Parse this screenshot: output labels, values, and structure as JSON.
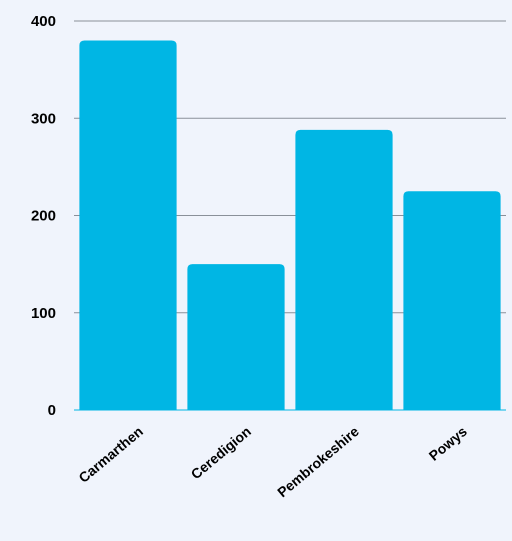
{
  "chart_data": {
    "type": "bar",
    "title": "",
    "xlabel": "",
    "ylabel": "",
    "categories": [
      "Carmarthen",
      "Ceredigion",
      "Pembrokeshire",
      "Powys"
    ],
    "values": [
      380,
      150,
      288,
      225
    ],
    "ylim": [
      0,
      400
    ],
    "yticks": [
      "0",
      "100",
      "200",
      "300",
      "400"
    ],
    "grid": true,
    "colors": {
      "bar": "#00b6e4",
      "grid": "#8a9099",
      "background": "#f0f4fc",
      "text": "#000000"
    }
  }
}
